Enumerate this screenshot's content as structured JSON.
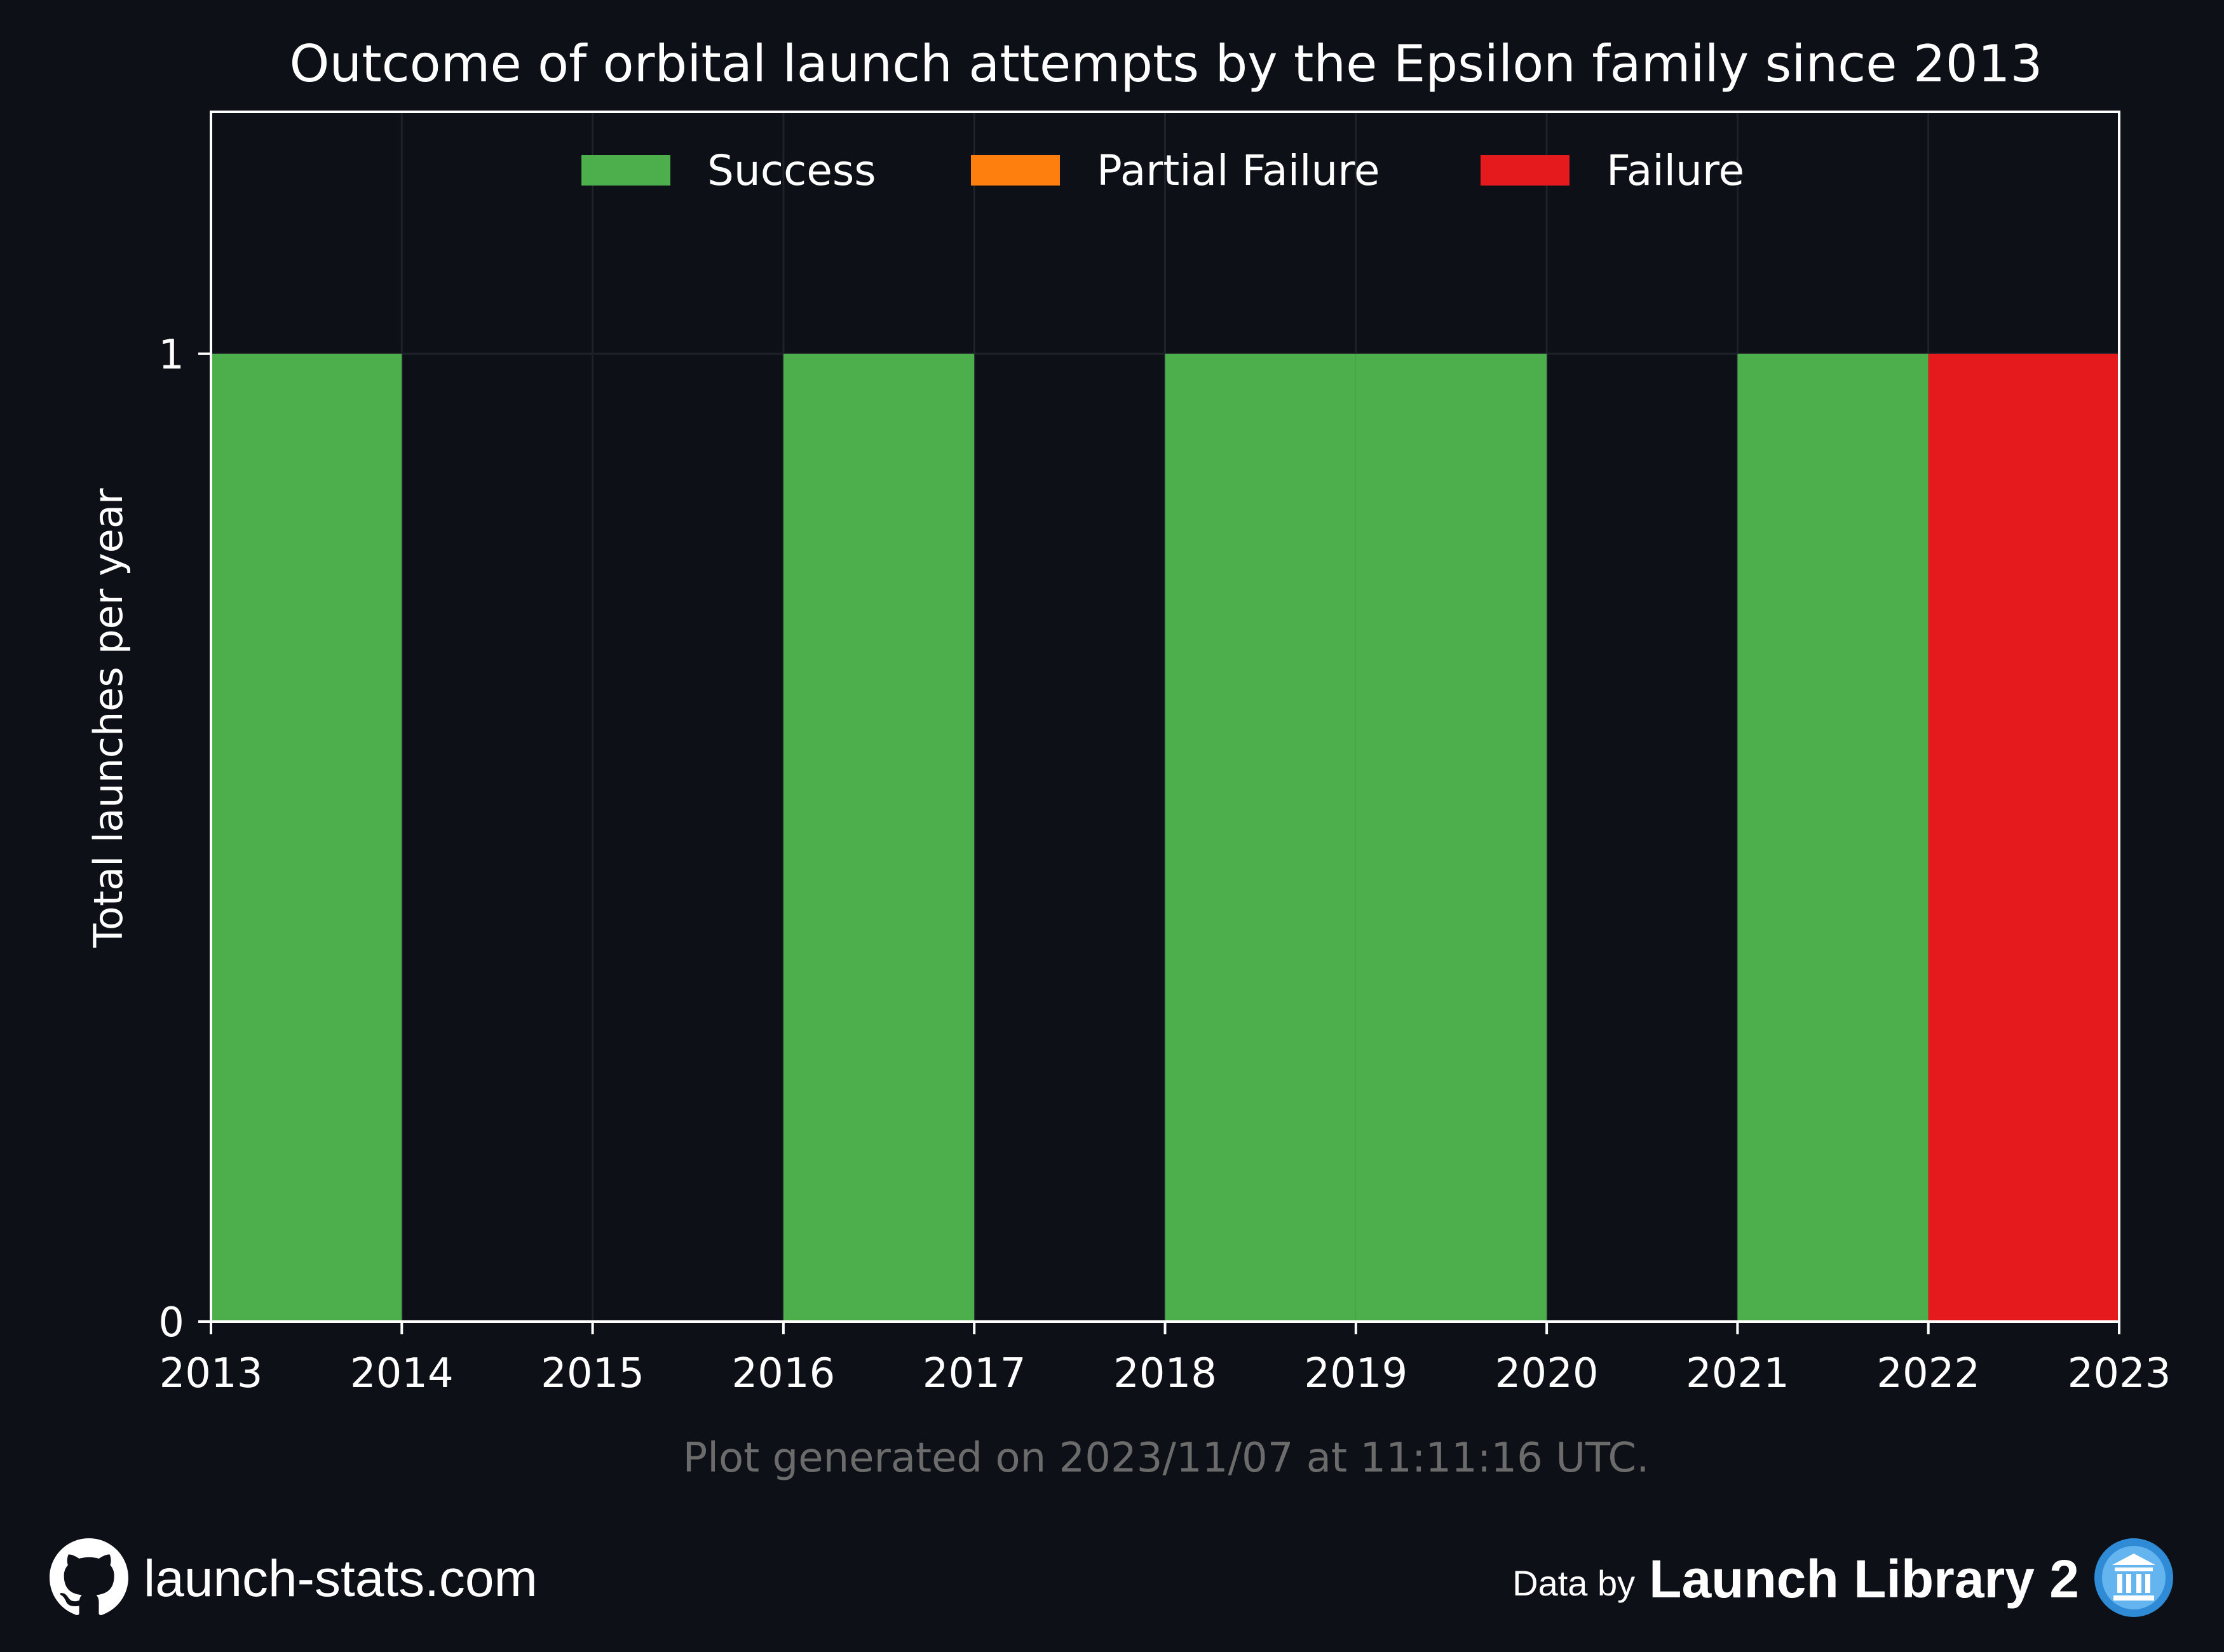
{
  "chart_data": {
    "type": "bar",
    "title": "Outcome of orbital launch attempts by the Epsilon family since 2013",
    "ylabel": "Total launches per year",
    "xlabel": "",
    "x_ticks": [
      "2013",
      "2014",
      "2015",
      "2016",
      "2017",
      "2018",
      "2019",
      "2020",
      "2021",
      "2022",
      "2023"
    ],
    "y_ticks": [
      "0",
      "1"
    ],
    "xlim": [
      2013,
      2023
    ],
    "ylim": [
      0,
      1.25
    ],
    "categories": [
      "2013",
      "2014",
      "2015",
      "2016",
      "2017",
      "2018",
      "2019",
      "2020",
      "2021",
      "2022"
    ],
    "series": [
      {
        "name": "Success",
        "color": "#4caf4c",
        "values": [
          1,
          0,
          0,
          1,
          0,
          1,
          1,
          0,
          1,
          0
        ]
      },
      {
        "name": "Partial Failure",
        "color": "#ff7f0e",
        "values": [
          0,
          0,
          0,
          0,
          0,
          0,
          0,
          0,
          0,
          0
        ]
      },
      {
        "name": "Failure",
        "color": "#e41a1c",
        "values": [
          0,
          0,
          0,
          0,
          0,
          0,
          0,
          0,
          0,
          1
        ]
      }
    ],
    "stacked": true,
    "grid": true,
    "legend_position": "top-center",
    "note": "Plot generated on 2023/11/07 at 11:11:16 UTC."
  },
  "colors": {
    "background": "#0d1017",
    "axes": "#ffffff",
    "grid": "#1e222b",
    "note": "#6b6b6b",
    "accent": "#2f8bd6"
  },
  "footer": {
    "site": "launch-stats.com",
    "site_icon": "github-icon",
    "data_prefix": "Data by",
    "data_source": "Launch Library 2",
    "data_icon": "launch-library-icon"
  }
}
